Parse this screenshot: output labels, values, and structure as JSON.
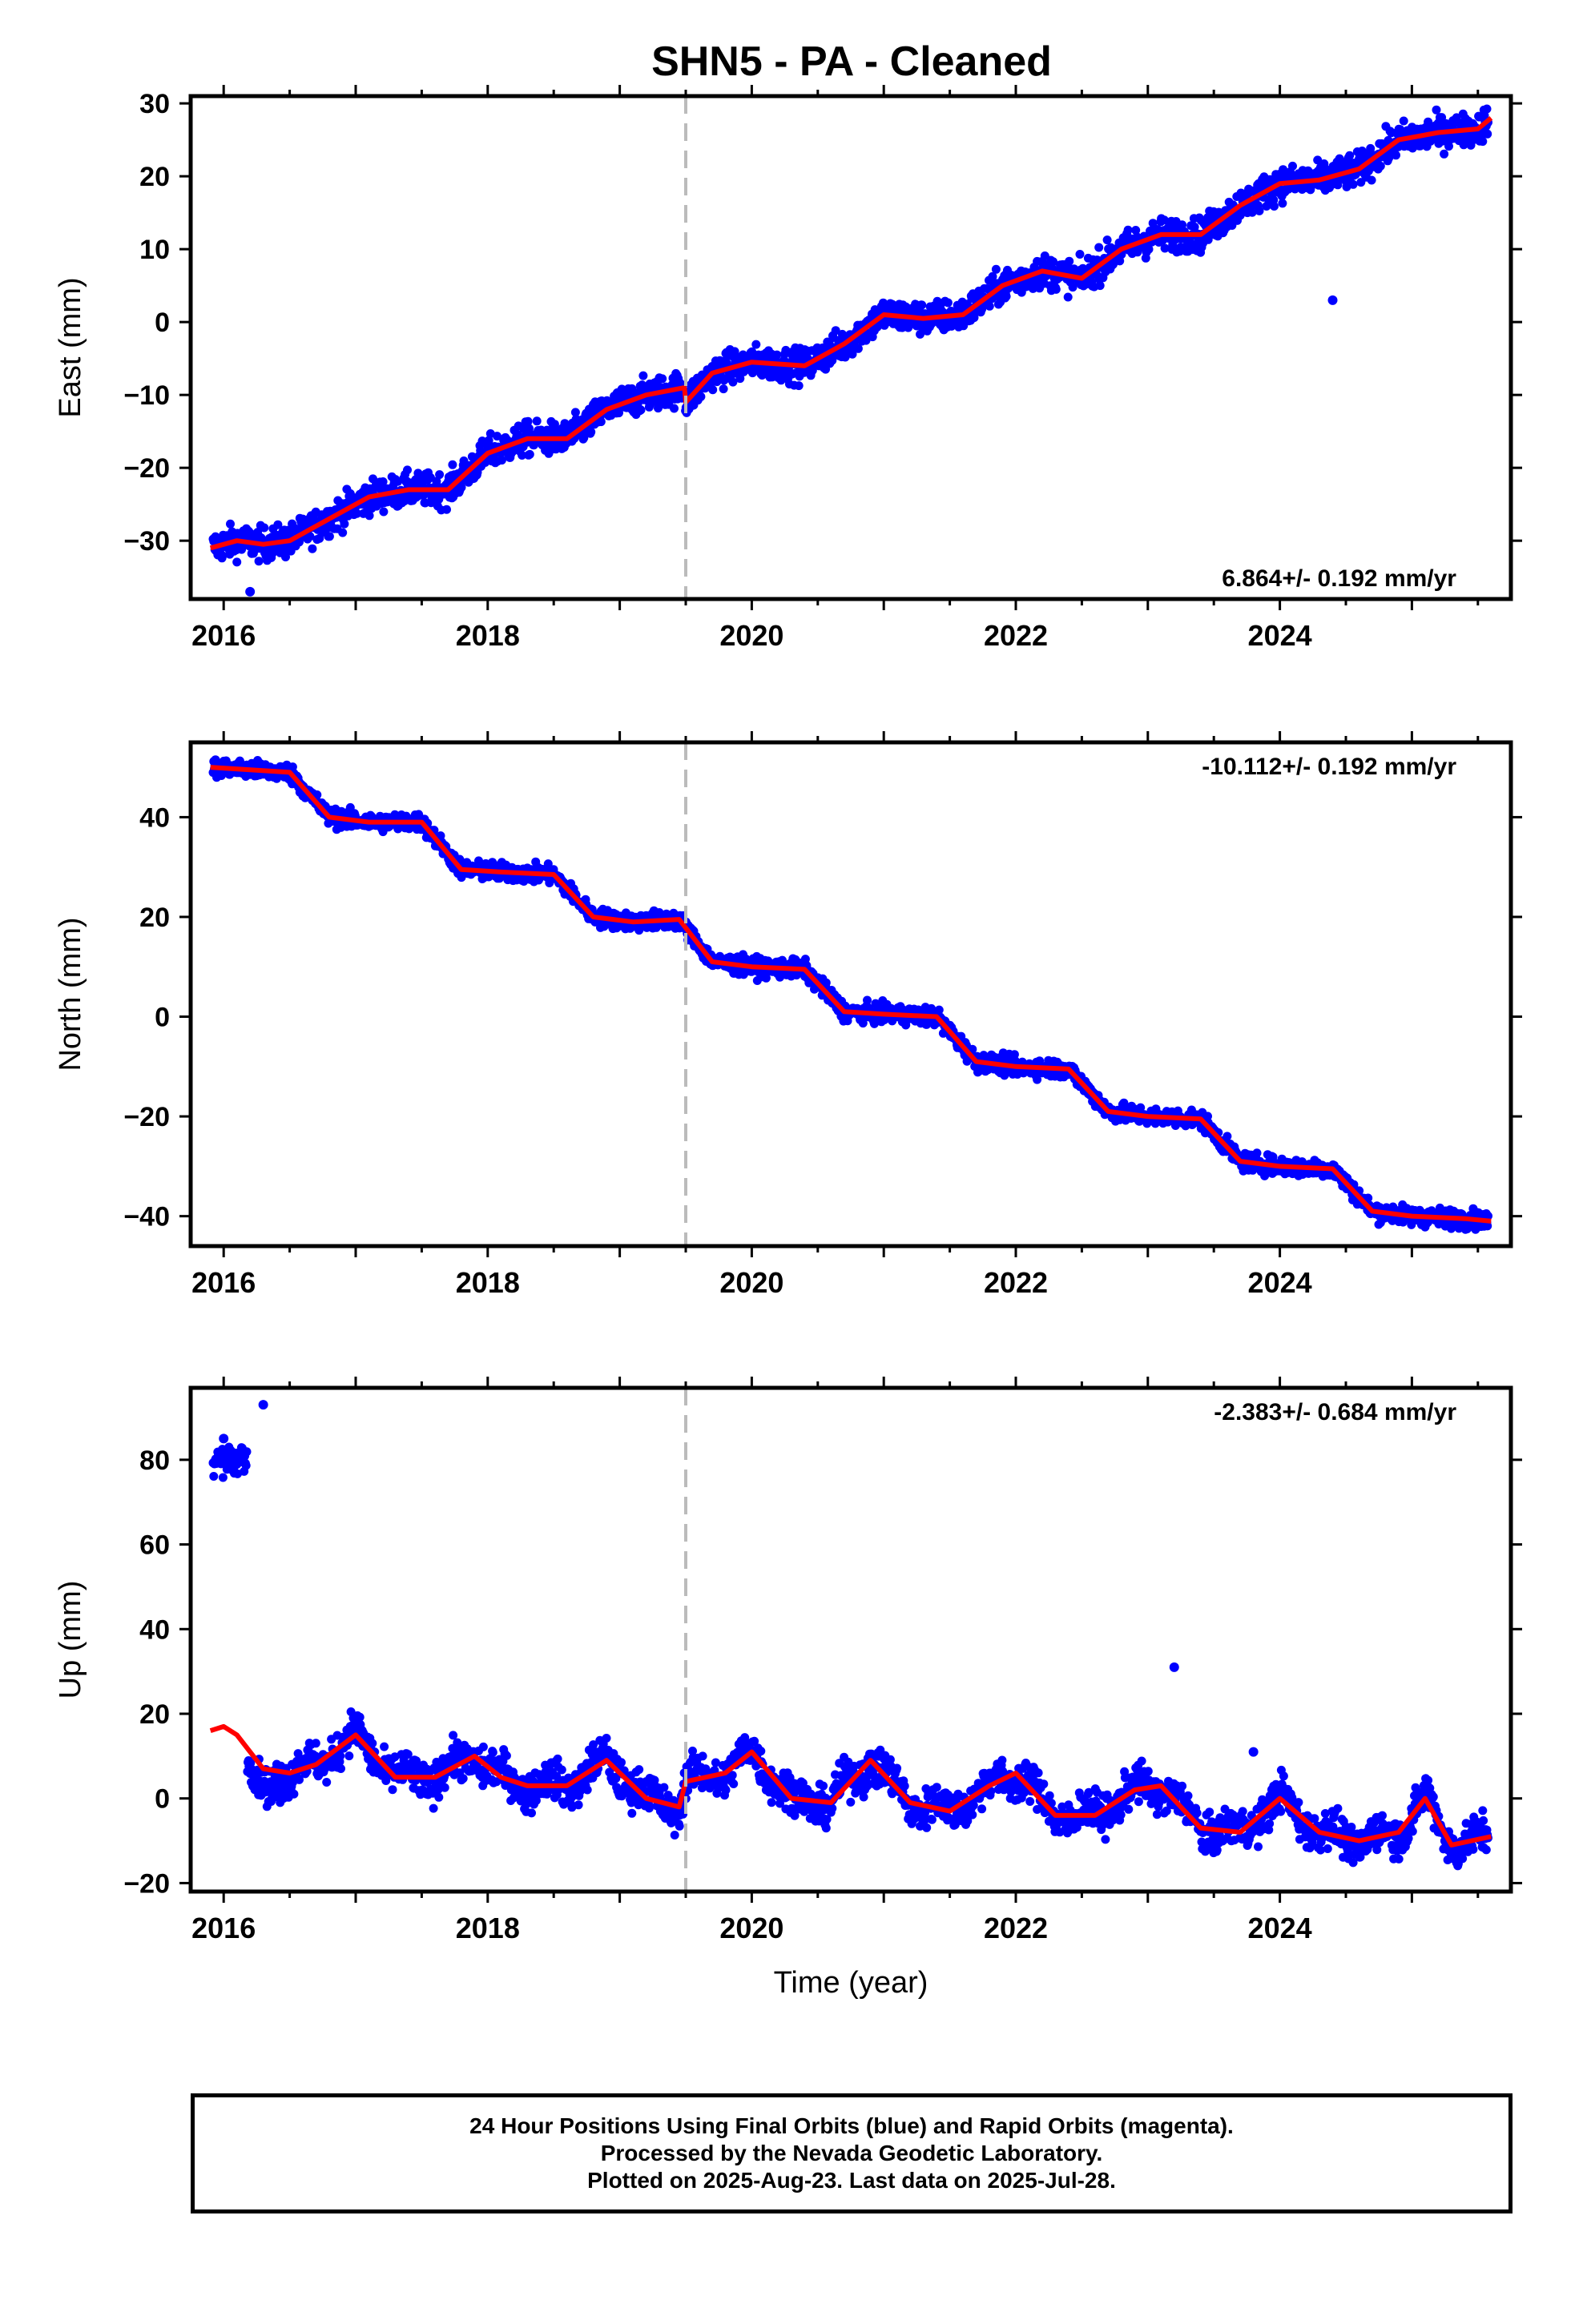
{
  "title": "SHN5  - PA - Cleaned",
  "colors": {
    "final": "#0000ff",
    "model": "#ff0000",
    "break": "#bbbbbb"
  },
  "chart_data": [
    {
      "type": "scatter",
      "ylabel": "East (mm)",
      "xlabel": "",
      "xlim": [
        2015.75,
        2025.75
      ],
      "ylim": [
        -38,
        31
      ],
      "yticks": [
        -30,
        -20,
        -10,
        0,
        10,
        20,
        30
      ],
      "xticks": [
        2016,
        2018,
        2020,
        2022,
        2024
      ],
      "break_line_x": 2019.5,
      "rate_label": "6.864+/- 0.192 mm/yr",
      "rate_position": "bottom-right",
      "model_curve": [
        [
          2015.9,
          -31
        ],
        [
          2016.1,
          -30
        ],
        [
          2016.3,
          -30.5
        ],
        [
          2016.5,
          -30
        ],
        [
          2016.8,
          -27
        ],
        [
          2017.1,
          -24
        ],
        [
          2017.4,
          -23
        ],
        [
          2017.7,
          -23
        ],
        [
          2018.0,
          -18
        ],
        [
          2018.3,
          -16
        ],
        [
          2018.6,
          -16
        ],
        [
          2018.9,
          -12
        ],
        [
          2019.2,
          -10
        ],
        [
          2019.49,
          -9
        ],
        [
          2019.5,
          -11
        ],
        [
          2019.7,
          -7
        ],
        [
          2020.0,
          -5.5
        ],
        [
          2020.4,
          -6
        ],
        [
          2020.7,
          -3
        ],
        [
          2021.0,
          1
        ],
        [
          2021.3,
          0.5
        ],
        [
          2021.6,
          1
        ],
        [
          2021.9,
          5
        ],
        [
          2022.2,
          7
        ],
        [
          2022.5,
          6
        ],
        [
          2022.8,
          10
        ],
        [
          2023.1,
          12
        ],
        [
          2023.4,
          12
        ],
        [
          2023.7,
          16
        ],
        [
          2024.0,
          19
        ],
        [
          2024.3,
          19.5
        ],
        [
          2024.6,
          21
        ],
        [
          2024.9,
          25
        ],
        [
          2025.2,
          26
        ],
        [
          2025.5,
          26.5
        ],
        [
          2025.6,
          28
        ]
      ],
      "outliers": [
        [
          2016.2,
          -37
        ],
        [
          2024.4,
          3
        ]
      ]
    },
    {
      "type": "scatter",
      "ylabel": "North (mm)",
      "xlabel": "",
      "xlim": [
        2015.75,
        2025.75
      ],
      "ylim": [
        -46,
        55
      ],
      "yticks": [
        -40,
        -20,
        0,
        20,
        40
      ],
      "xticks": [
        2016,
        2018,
        2020,
        2022,
        2024
      ],
      "break_line_x": 2019.5,
      "rate_label": "-10.112+/- 0.192 mm/yr",
      "rate_position": "top-right",
      "model_curve": [
        [
          2015.9,
          50
        ],
        [
          2016.2,
          49.5
        ],
        [
          2016.5,
          49
        ],
        [
          2016.8,
          40
        ],
        [
          2017.1,
          39
        ],
        [
          2017.5,
          39
        ],
        [
          2017.8,
          29.5
        ],
        [
          2018.1,
          29
        ],
        [
          2018.5,
          28.5
        ],
        [
          2018.8,
          20
        ],
        [
          2019.1,
          19
        ],
        [
          2019.45,
          19.5
        ],
        [
          2019.7,
          11
        ],
        [
          2020.0,
          10
        ],
        [
          2020.4,
          9.5
        ],
        [
          2020.7,
          1
        ],
        [
          2021.0,
          0.5
        ],
        [
          2021.4,
          0
        ],
        [
          2021.7,
          -9
        ],
        [
          2022.0,
          -10
        ],
        [
          2022.4,
          -10.5
        ],
        [
          2022.7,
          -19
        ],
        [
          2023.0,
          -20
        ],
        [
          2023.4,
          -20.5
        ],
        [
          2023.7,
          -29
        ],
        [
          2024.0,
          -30
        ],
        [
          2024.4,
          -30.5
        ],
        [
          2024.7,
          -39
        ],
        [
          2025.0,
          -40
        ],
        [
          2025.4,
          -40.5
        ],
        [
          2025.6,
          -41
        ]
      ],
      "outliers": []
    },
    {
      "type": "scatter",
      "ylabel": "Up (mm)",
      "xlabel": "Time (year)",
      "xlim": [
        2015.75,
        2025.75
      ],
      "ylim": [
        -22,
        97
      ],
      "yticks": [
        -20,
        0,
        20,
        40,
        60,
        80
      ],
      "xticks": [
        2016,
        2018,
        2020,
        2022,
        2024
      ],
      "break_line_x": 2019.5,
      "rate_label": "-2.383+/- 0.684 mm/yr",
      "rate_position": "top-right",
      "model_curve": [
        [
          2015.9,
          16
        ],
        [
          2016.0,
          17
        ],
        [
          2016.1,
          15
        ],
        [
          2016.3,
          7
        ],
        [
          2016.5,
          6
        ],
        [
          2016.7,
          8
        ],
        [
          2017.0,
          15
        ],
        [
          2017.3,
          5
        ],
        [
          2017.6,
          5
        ],
        [
          2017.9,
          10
        ],
        [
          2018.1,
          5
        ],
        [
          2018.3,
          3
        ],
        [
          2018.6,
          3
        ],
        [
          2018.9,
          9
        ],
        [
          2019.2,
          0
        ],
        [
          2019.45,
          -2
        ],
        [
          2019.5,
          4
        ],
        [
          2019.8,
          6
        ],
        [
          2020.0,
          11
        ],
        [
          2020.3,
          0
        ],
        [
          2020.6,
          -1
        ],
        [
          2020.9,
          9
        ],
        [
          2021.2,
          -1
        ],
        [
          2021.5,
          -3
        ],
        [
          2021.8,
          3
        ],
        [
          2022.0,
          6
        ],
        [
          2022.3,
          -4
        ],
        [
          2022.6,
          -4
        ],
        [
          2022.9,
          2
        ],
        [
          2023.1,
          3
        ],
        [
          2023.4,
          -7
        ],
        [
          2023.7,
          -8
        ],
        [
          2024.0,
          0
        ],
        [
          2024.3,
          -8
        ],
        [
          2024.6,
          -10
        ],
        [
          2024.9,
          -8
        ],
        [
          2025.1,
          0
        ],
        [
          2025.3,
          -11
        ],
        [
          2025.6,
          -9
        ]
      ],
      "outliers": [
        [
          2016.0,
          85
        ],
        [
          2016.3,
          93
        ],
        [
          2023.2,
          31
        ],
        [
          2023.8,
          11
        ]
      ]
    }
  ],
  "footer": {
    "line1": "24 Hour Positions Using Final Orbits (blue) and Rapid Orbits (magenta).",
    "line2": "Processed by the Nevada Geodetic Laboratory.",
    "line3": "Plotted on 2025-Aug-23. Last data on 2025-Jul-28."
  }
}
